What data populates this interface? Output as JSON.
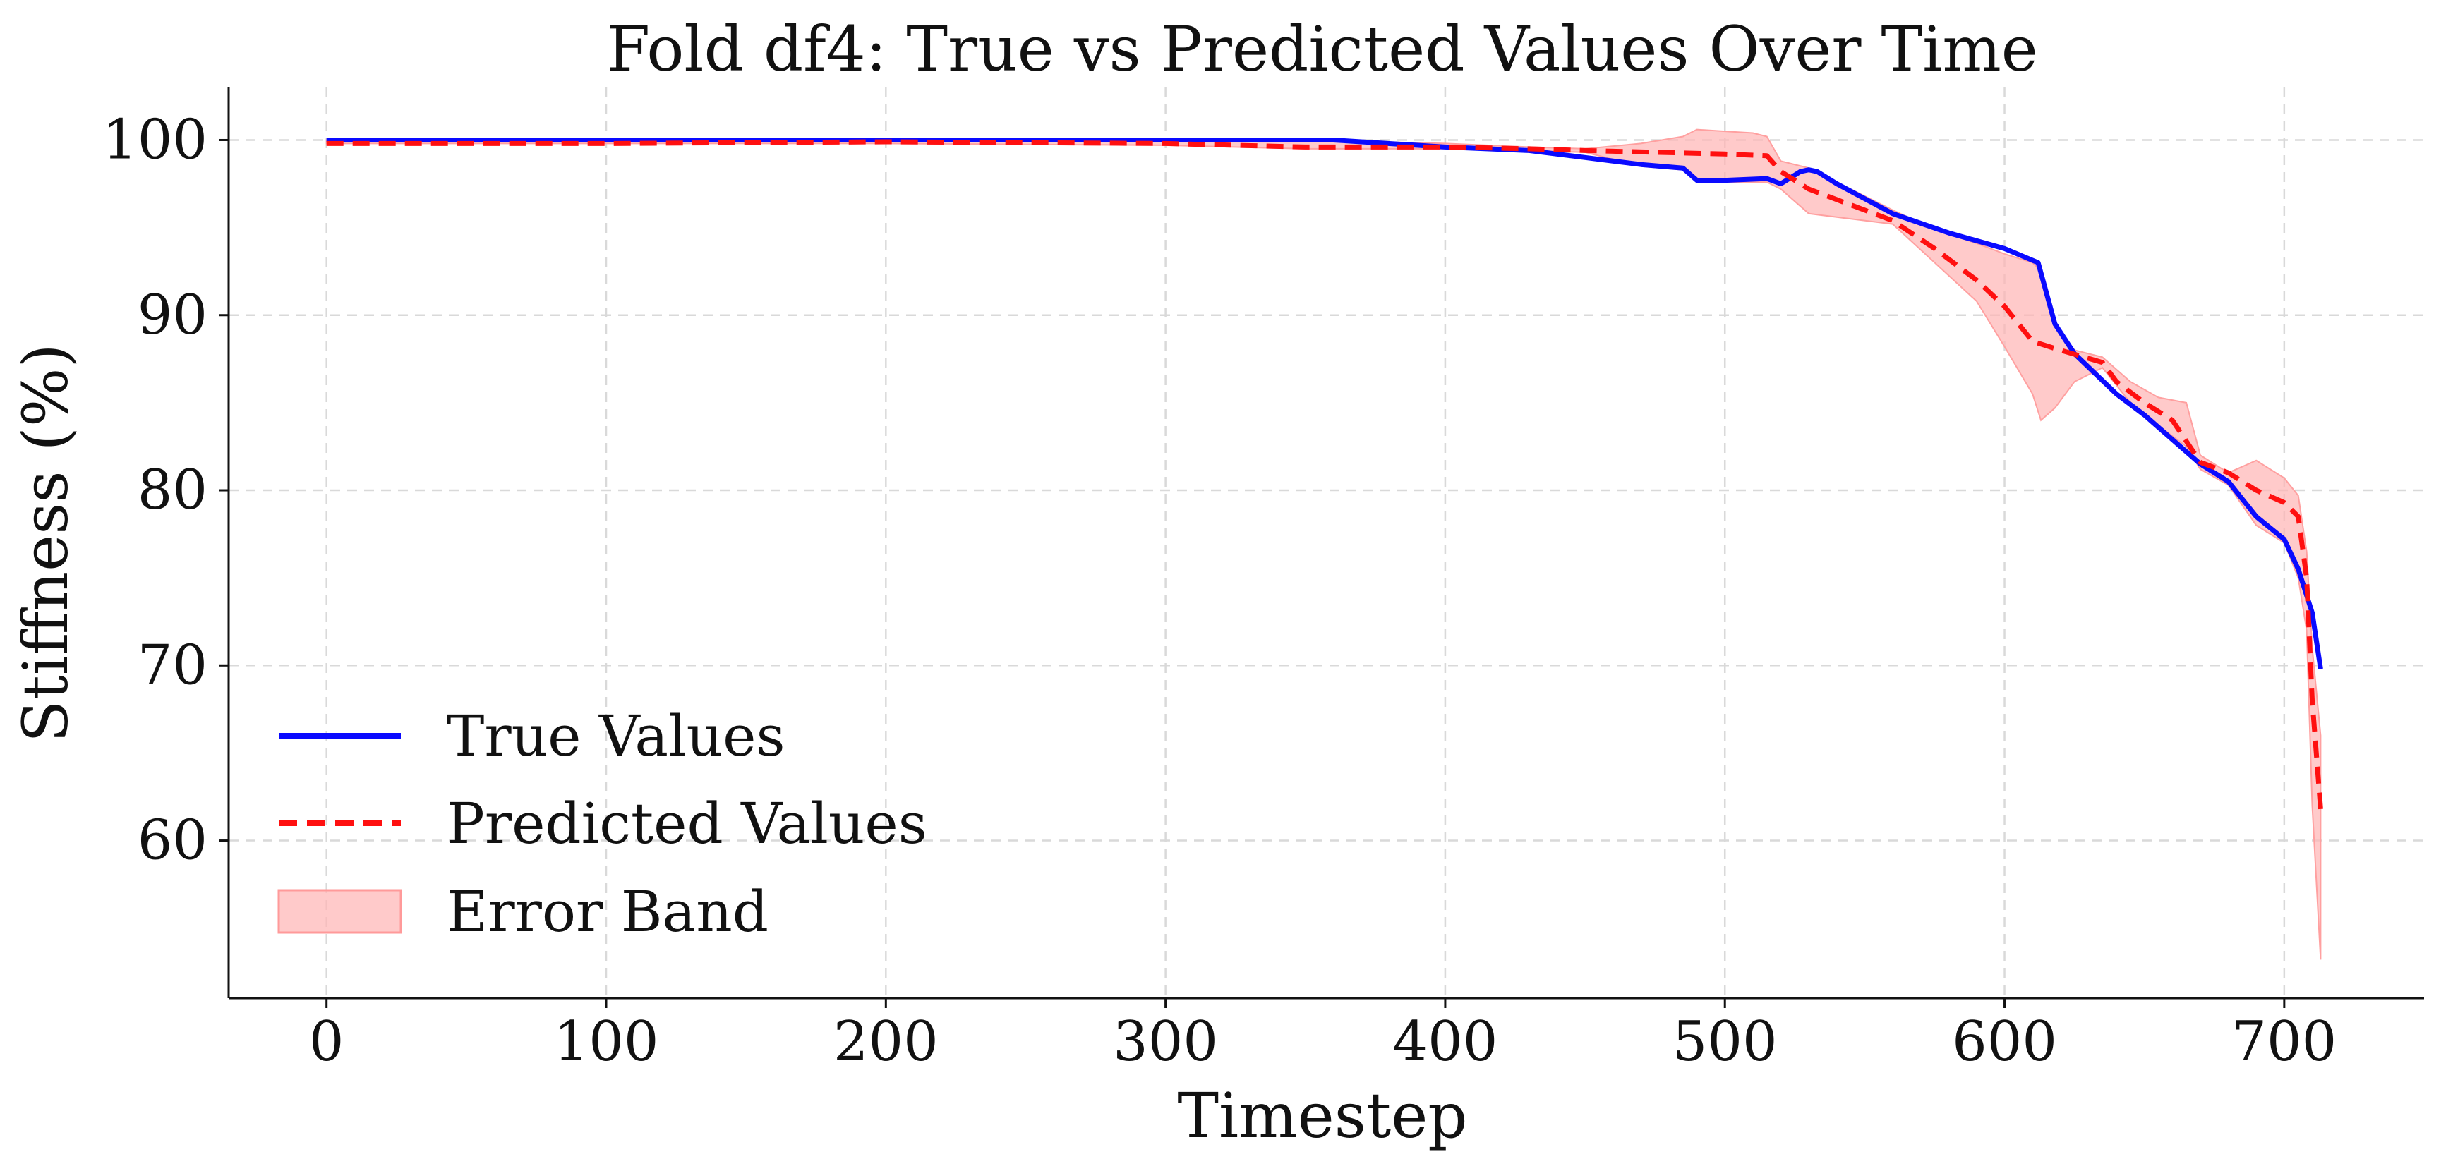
{
  "chart_data": {
    "type": "line",
    "title": "Fold df4: True vs Predicted Values Over Time",
    "xlabel": "Timestep",
    "ylabel": "Stiffness (%)",
    "xlim": [
      -35,
      750
    ],
    "ylim": [
      51,
      103
    ],
    "x_ticks": [
      0,
      100,
      200,
      300,
      400,
      500,
      600,
      700
    ],
    "y_ticks": [
      60,
      70,
      80,
      90,
      100
    ],
    "grid": true,
    "legend_position": "lower-left",
    "series": [
      {
        "name": "True Values",
        "color": "#0a0aff",
        "style": "solid",
        "x": [
          0,
          100,
          200,
          300,
          360,
          400,
          430,
          450,
          470,
          485,
          490,
          500,
          515,
          520,
          527,
          530,
          533,
          540,
          560,
          580,
          600,
          612,
          618,
          625,
          640,
          650,
          660,
          670,
          680,
          690,
          700,
          705,
          710,
          713
        ],
        "y": [
          100,
          100,
          100,
          100,
          100,
          99.6,
          99.4,
          99.0,
          98.6,
          98.4,
          97.7,
          97.7,
          97.8,
          97.5,
          98.2,
          98.3,
          98.2,
          97.5,
          95.8,
          94.7,
          93.8,
          93.0,
          89.5,
          87.8,
          85.5,
          84.3,
          82.9,
          81.5,
          80.5,
          78.5,
          77.2,
          75.5,
          73.0,
          69.8
        ]
      },
      {
        "name": "Predicted Values",
        "color": "#ff1010",
        "style": "dashed",
        "x": [
          0,
          100,
          200,
          300,
          350,
          400,
          430,
          450,
          500,
          515,
          520,
          530,
          560,
          575,
          590,
          600,
          610,
          620,
          635,
          640,
          650,
          660,
          670,
          680,
          690,
          700,
          705,
          708,
          710,
          713
        ],
        "y": [
          99.8,
          99.8,
          99.9,
          99.8,
          99.6,
          99.6,
          99.5,
          99.4,
          99.2,
          99.1,
          98.2,
          97.2,
          95.4,
          93.8,
          92.0,
          90.5,
          88.5,
          88.0,
          87.3,
          86.2,
          85.0,
          84.0,
          81.6,
          81.0,
          80.0,
          79.3,
          78.5,
          75.0,
          68.0,
          61.8
        ]
      }
    ],
    "error_band": {
      "name": "Error Band",
      "color": "#ffb3b3",
      "x": [
        0,
        100,
        200,
        300,
        350,
        400,
        430,
        450,
        470,
        485,
        490,
        500,
        510,
        515,
        520,
        530,
        540,
        560,
        575,
        590,
        600,
        610,
        613,
        618,
        625,
        635,
        645,
        655,
        665,
        670,
        680,
        690,
        700,
        705,
        708,
        710,
        713
      ],
      "upper": [
        100,
        100,
        100,
        100,
        100,
        99.8,
        99.6,
        99.5,
        99.8,
        100.2,
        100.6,
        100.5,
        100.4,
        100.2,
        98.8,
        98.4,
        97.6,
        96.0,
        94.9,
        94.1,
        93.5,
        93.0,
        92.5,
        89.5,
        88.0,
        87.6,
        86.2,
        85.3,
        85.0,
        82.0,
        81.0,
        81.7,
        80.7,
        79.7,
        76.5,
        71.0,
        66.0
      ],
      "lower": [
        99.8,
        99.8,
        99.8,
        99.7,
        99.5,
        99.5,
        99.4,
        99.3,
        98.5,
        98.3,
        97.6,
        97.6,
        97.6,
        97.6,
        97.2,
        95.8,
        95.6,
        95.2,
        93.0,
        90.8,
        88.2,
        85.5,
        84.0,
        84.7,
        86.2,
        87.0,
        85.0,
        83.7,
        82.5,
        81.2,
        80.3,
        78.0,
        77.0,
        75.0,
        72.0,
        62.0,
        53.2
      ]
    }
  }
}
